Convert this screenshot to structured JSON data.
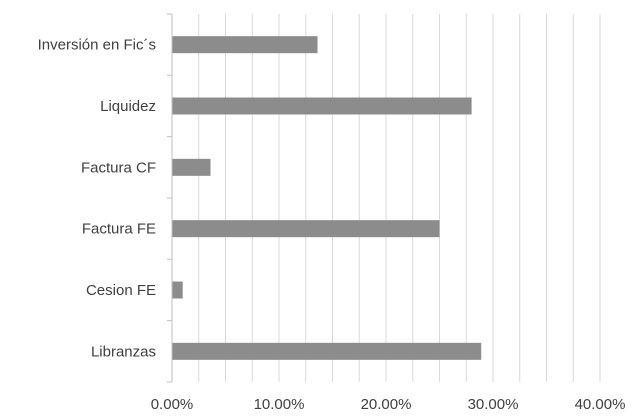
{
  "chart_data": {
    "type": "bar",
    "orientation": "horizontal",
    "categories": [
      "Inversión en Fic´s",
      "Liquidez",
      "Factura CF",
      "Factura FE",
      "Cesion FE",
      "Libranzas"
    ],
    "series": [
      {
        "values": [
          0.136,
          0.28,
          0.036,
          0.25,
          0.01,
          0.289
        ]
      }
    ],
    "xlim": [
      0,
      0.4
    ],
    "x_ticks": [
      0,
      0.1,
      0.2,
      0.3,
      0.4
    ],
    "x_tick_labels": [
      "0.00%",
      "10.00%",
      "20.00%",
      "30.00%",
      "40.00%"
    ],
    "title": "",
    "xlabel": "",
    "ylabel": "",
    "grid": "vertical",
    "legend": "none",
    "colors": {
      "bar": "#8c8c8c",
      "grid": "#d9d9d9",
      "axis": "#bfbfbf",
      "text": "#404040"
    }
  }
}
